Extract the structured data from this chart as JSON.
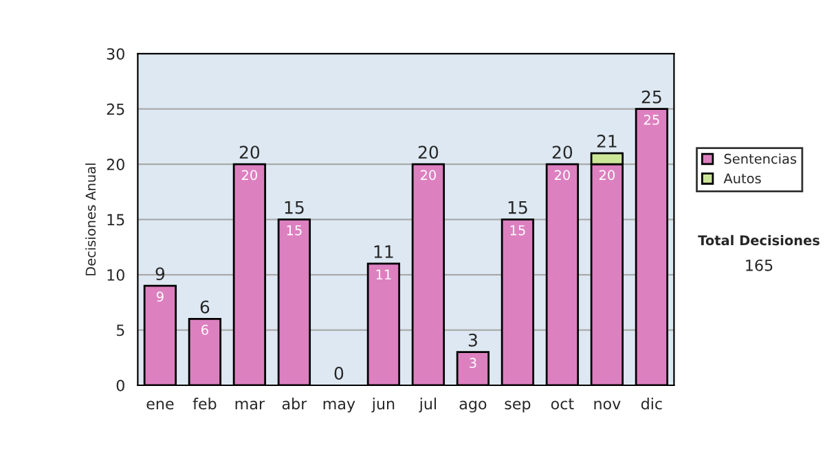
{
  "chart_data": {
    "type": "bar",
    "stacked": true,
    "ylabel": "Decisiones Anual",
    "categories": [
      "ene",
      "feb",
      "mar",
      "abr",
      "may",
      "jun",
      "jul",
      "ago",
      "sep",
      "oct",
      "nov",
      "dic"
    ],
    "series": [
      {
        "name": "Sentencias",
        "color": "#dd80c0",
        "values": [
          9,
          6,
          20,
          15,
          0,
          11,
          20,
          3,
          15,
          20,
          20,
          25
        ],
        "value_labels": [
          "9",
          "6",
          "20",
          "15",
          null,
          "11",
          "20",
          "3",
          "15",
          "20",
          "20",
          "25"
        ]
      },
      {
        "name": "Autos",
        "color": "#cce698",
        "values": [
          null,
          null,
          null,
          null,
          null,
          null,
          null,
          null,
          null,
          null,
          1,
          null
        ]
      }
    ],
    "totals": [
      "9",
      "6",
      "20",
      "15",
      "0",
      "11",
      "20",
      "3",
      "15",
      "20",
      "21",
      "25"
    ],
    "ylim": [
      0,
      30
    ],
    "yticks": [
      0,
      5,
      10,
      15,
      20,
      25,
      30
    ],
    "grid": "y",
    "legend": "right",
    "annotations": [
      "Total Decisiones",
      "165"
    ]
  }
}
